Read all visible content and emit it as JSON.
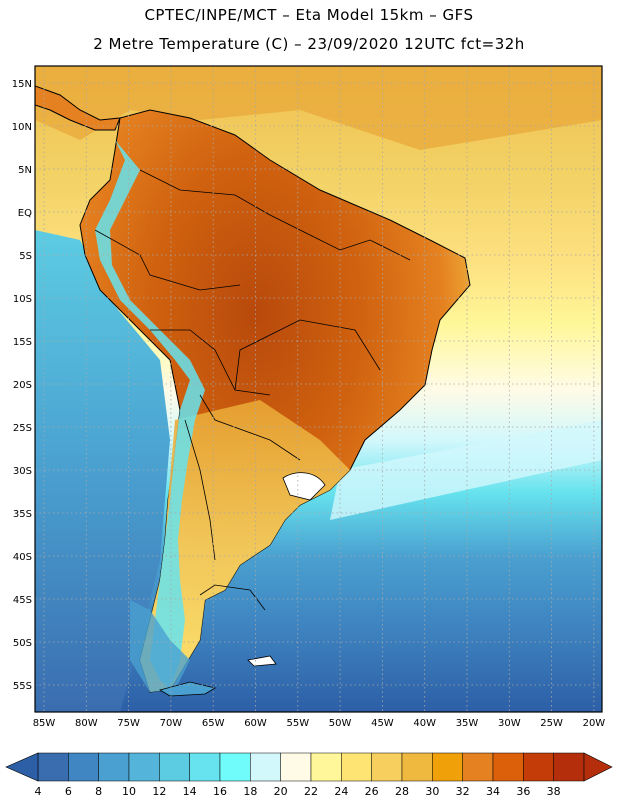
{
  "header": {
    "line1": "CPTEC/INPE/MCT –   Eta Model 15km – GFS",
    "line2": "2 Metre Temperature (C) – 23/09/2020 12UTC fct=32h"
  },
  "axes": {
    "lat_labels": [
      "15N",
      "10N",
      "5N",
      "EQ",
      "5S",
      "10S",
      "15S",
      "20S",
      "25S",
      "30S",
      "35S",
      "40S",
      "45S",
      "50S",
      "55S"
    ],
    "lon_labels": [
      "85W",
      "80W",
      "75W",
      "70W",
      "65W",
      "60W",
      "55W",
      "50W",
      "45W",
      "40W",
      "35W",
      "30W",
      "25W",
      "20W"
    ]
  },
  "colorbar": {
    "labels": [
      "4",
      "6",
      "8",
      "10",
      "12",
      "14",
      "16",
      "18",
      "20",
      "22",
      "24",
      "26",
      "28",
      "30",
      "32",
      "34",
      "36",
      "38"
    ],
    "colors": [
      "#3a6db0",
      "#3f86c2",
      "#4aa0d0",
      "#55b4da",
      "#5ccce3",
      "#66e3ee",
      "#6ffcfb",
      "#d2f8fc",
      "#fffbe6",
      "#fff799",
      "#fde473",
      "#f7cf5e",
      "#efb940",
      "#f0a10a",
      "#e58120",
      "#dc5f0a",
      "#c43c08",
      "#b52e0c"
    ]
  },
  "palette": {
    "ocean_deep": "#2d5fa6",
    "ocean_mid": "#3f86c2",
    "ocean_warm": "#5ccce3",
    "ocean_tropic": "#f3d367",
    "land_hot": "#c9560f",
    "land_warm": "#e58120",
    "land_mild": "#efb940",
    "andes": "#6ffcfb"
  }
}
